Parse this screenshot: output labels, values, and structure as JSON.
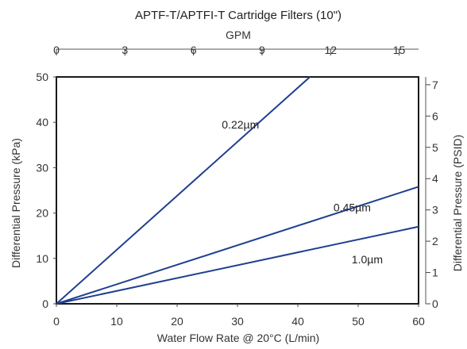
{
  "chart_data": {
    "type": "line",
    "title": "APTF-T/APTFI-T Cartridge Filters (10\")",
    "xlabel": "Water Flow Rate @ 20°C (L/min)",
    "ylabel": "Differential Pressure (kPa)",
    "x2label": "GPM",
    "y2label": "Differential Pressure (PSID)",
    "xlim": [
      0,
      60
    ],
    "ylim": [
      0,
      50
    ],
    "x2lim": [
      0,
      15.85
    ],
    "y2lim": [
      0,
      7.25
    ],
    "x_ticks": [
      0,
      10,
      20,
      30,
      40,
      50,
      60
    ],
    "y_ticks": [
      0,
      10,
      20,
      30,
      40,
      50
    ],
    "x2_ticks": [
      0,
      3,
      6,
      9,
      12,
      15
    ],
    "y2_ticks": [
      0,
      1,
      2,
      3,
      4,
      5,
      6,
      7
    ],
    "grid": false,
    "line_color": "#1f3f8f",
    "series": [
      {
        "name": "0.22µm",
        "x": [
          0,
          42
        ],
        "y": [
          0,
          50
        ],
        "label_at": [
          30.5,
          39.5
        ]
      },
      {
        "name": "0.45µm",
        "x": [
          0,
          60
        ],
        "y": [
          0,
          25.8
        ],
        "label_at": [
          49,
          21.2
        ]
      },
      {
        "name": "1.0µm",
        "x": [
          0,
          60
        ],
        "y": [
          0,
          17
        ],
        "label_at": [
          51.5,
          9.8
        ]
      }
    ]
  }
}
